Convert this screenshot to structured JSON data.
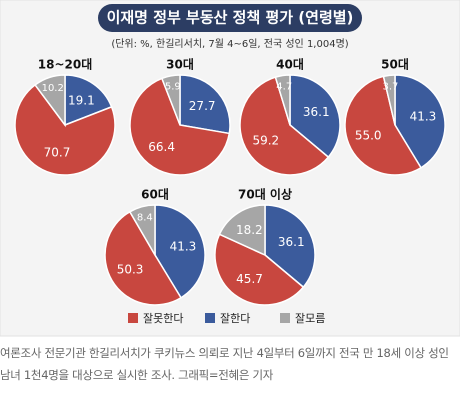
{
  "header": {
    "title": "이재명 정부 부동산 정책 평가 (연령별)",
    "subtitle": "(단위: %, 한길리서치, 7월 4~6일, 전국 성인 1,004명)"
  },
  "chart_data": [
    {
      "type": "pie",
      "title": "18~20대",
      "categories": [
        "잘못한다",
        "잘한다",
        "잘모름"
      ],
      "colors": [
        "#c8473f",
        "#3b5b9c",
        "#a6a6a6"
      ],
      "values": [
        70.7,
        19.1,
        10.2
      ],
      "value_labels": [
        "70.7",
        "19.1",
        "10.2"
      ]
    },
    {
      "type": "pie",
      "title": "30대",
      "categories": [
        "잘못한다",
        "잘한다",
        "잘모름"
      ],
      "colors": [
        "#c8473f",
        "#3b5b9c",
        "#a6a6a6"
      ],
      "values": [
        66.4,
        27.7,
        5.9
      ],
      "value_labels": [
        "66.4",
        "27.7",
        "5.9"
      ]
    },
    {
      "type": "pie",
      "title": "40대",
      "categories": [
        "잘못한다",
        "잘한다",
        "잘모름"
      ],
      "colors": [
        "#c8473f",
        "#3b5b9c",
        "#a6a6a6"
      ],
      "values": [
        59.2,
        36.1,
        4.7
      ],
      "value_labels": [
        "59.2",
        "36.1",
        "4.7"
      ]
    },
    {
      "type": "pie",
      "title": "50대",
      "categories": [
        "잘못한다",
        "잘한다",
        "잘모름"
      ],
      "colors": [
        "#c8473f",
        "#3b5b9c",
        "#a6a6a6"
      ],
      "values": [
        55.0,
        41.3,
        3.7
      ],
      "value_labels": [
        "55.0",
        "41.3",
        "3.7"
      ]
    },
    {
      "type": "pie",
      "title": "60대",
      "categories": [
        "잘못한다",
        "잘한다",
        "잘모름"
      ],
      "colors": [
        "#c8473f",
        "#3b5b9c",
        "#a6a6a6"
      ],
      "values": [
        50.3,
        41.3,
        8.4
      ],
      "value_labels": [
        "50.3",
        "41.3",
        "8.4"
      ]
    },
    {
      "type": "pie",
      "title": "70대 이상",
      "categories": [
        "잘못한다",
        "잘한다",
        "잘모름"
      ],
      "colors": [
        "#c8473f",
        "#3b5b9c",
        "#a6a6a6"
      ],
      "values": [
        45.7,
        36.1,
        18.2
      ],
      "value_labels": [
        "45.7",
        "36.1",
        "18.2"
      ]
    }
  ],
  "caption": "여론조사 전문기관 한길리서치가 쿠키뉴스 의뢰로 지난 4일부터 6일까지 전국 만 18세 이상 성인 남녀 1천4명을 대상으로 실시한 조사.  그래픽=전혜은 기자"
}
